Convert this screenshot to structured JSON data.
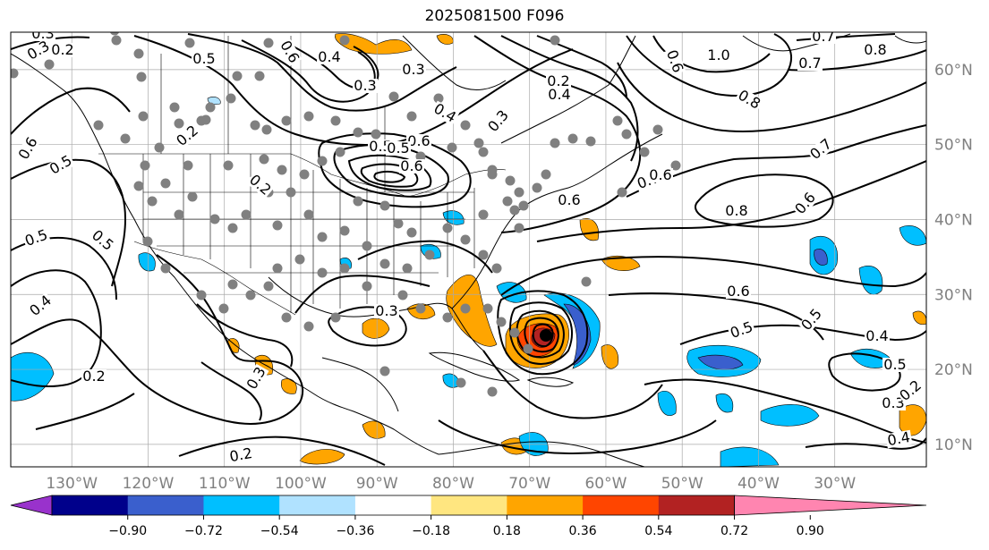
{
  "title": "2025081500 F096",
  "map": {
    "projection": "plate-carree",
    "lon_range": [
      -138,
      -18
    ],
    "lat_range": [
      7,
      65
    ],
    "lon_ticks": [
      "130°W",
      "120°W",
      "110°W",
      "100°W",
      "90°W",
      "80°W",
      "70°W",
      "60°W",
      "50°W",
      "40°W",
      "30°W"
    ],
    "lat_ticks": [
      "10°N",
      "20°N",
      "30°N",
      "40°N",
      "50°N",
      "60°N"
    ],
    "gridlines": true,
    "contour_color": "#000000",
    "contour_labels": [
      "0.3",
      "0.5",
      "0.6",
      "0.4",
      "0.3",
      "0.2",
      "0.5",
      "0.6",
      "0.2",
      "0.5",
      "0.4",
      "0.5",
      "0.3",
      "0.5",
      "0.6",
      "0.3",
      "0.4",
      "0.6",
      "0.2",
      "0.3",
      "0.2",
      "0.3",
      "0.6",
      "0.7",
      "0.6",
      "0.8",
      "0.7",
      "0.6",
      "0.8",
      "1.0",
      "0.7",
      "0.8",
      "0.7",
      "0.6",
      "0.5",
      "0.6",
      "0.5",
      "0.4",
      "0.5",
      "0.3",
      "0.4",
      "0.2",
      "0.3",
      "0.2",
      "0.4",
      "0.2",
      "0.3",
      "0.5"
    ],
    "station_marker_color": "#808080"
  },
  "colorbar": {
    "ticks": [
      "−0.90",
      "−0.72",
      "−0.54",
      "−0.36",
      "−0.18",
      "0.18",
      "0.36",
      "0.54",
      "0.72",
      "0.90"
    ],
    "colors": [
      "#9932cc",
      "#00008b",
      "#3a5fcd",
      "#00bfff",
      "#b0e2ff",
      "#ffffff",
      "#ffe680",
      "#ffa500",
      "#ff4500",
      "#b22222",
      "#ff85b0"
    ],
    "extend": "both"
  }
}
